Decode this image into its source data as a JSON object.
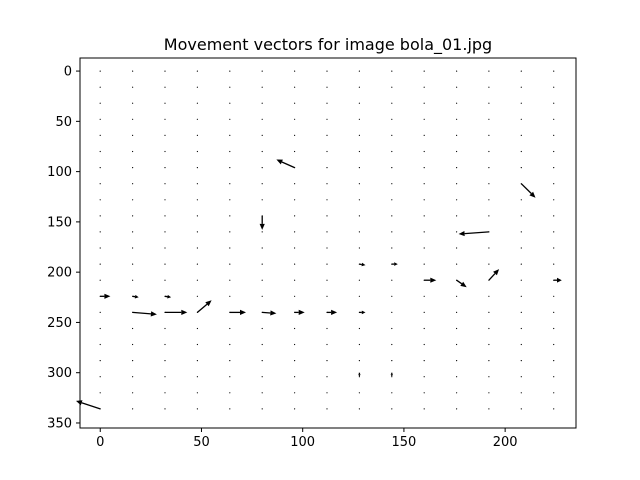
{
  "chart_data": {
    "type": "quiver",
    "title": "Movement vectors for image bola_01.jpg",
    "xlabel": "",
    "ylabel": "",
    "xlim": [
      -10,
      235
    ],
    "ylim": [
      355,
      -13
    ],
    "y_inverted": true,
    "xticks": [
      0,
      50,
      100,
      150,
      200
    ],
    "yticks": [
      0,
      50,
      100,
      150,
      200,
      250,
      300,
      350
    ],
    "grid": false,
    "legend": "none",
    "arrow_color": "#000000",
    "grid_points": {
      "x_start": 0,
      "x_step": 16,
      "x_count": 15,
      "y_start": 0,
      "y_step": 16,
      "y_count": 22
    },
    "vectors": [
      {
        "x": 96,
        "y": 96,
        "u": -9,
        "v": -8
      },
      {
        "x": 208,
        "y": 112,
        "u": 7,
        "v": 14
      },
      {
        "x": 80,
        "y": 144,
        "u": 0,
        "v": 14
      },
      {
        "x": 192,
        "y": 160,
        "u": -15,
        "v": 2
      },
      {
        "x": 128,
        "y": 192,
        "u": 3,
        "v": 1
      },
      {
        "x": 144,
        "y": 192,
        "u": 3,
        "v": 0
      },
      {
        "x": 160,
        "y": 208,
        "u": 6,
        "v": 0
      },
      {
        "x": 176,
        "y": 208,
        "u": 5,
        "v": 7
      },
      {
        "x": 192,
        "y": 208,
        "u": 5,
        "v": -11
      },
      {
        "x": 224,
        "y": 208,
        "u": 4,
        "v": 0
      },
      {
        "x": 0,
        "y": 224,
        "u": 5,
        "v": 0
      },
      {
        "x": 16,
        "y": 224,
        "u": 3,
        "v": 1
      },
      {
        "x": 32,
        "y": 224,
        "u": 3,
        "v": 1
      },
      {
        "x": 16,
        "y": 240,
        "u": 12,
        "v": 2
      },
      {
        "x": 32,
        "y": 240,
        "u": 11,
        "v": 0
      },
      {
        "x": 48,
        "y": 240,
        "u": 7,
        "v": -12
      },
      {
        "x": 64,
        "y": 240,
        "u": 8,
        "v": 0
      },
      {
        "x": 80,
        "y": 240,
        "u": 7,
        "v": 1
      },
      {
        "x": 96,
        "y": 240,
        "u": 5,
        "v": 0
      },
      {
        "x": 112,
        "y": 240,
        "u": 5,
        "v": 0
      },
      {
        "x": 128,
        "y": 240,
        "u": 3,
        "v": 0
      },
      {
        "x": 128,
        "y": 300,
        "u": 0,
        "v": 4
      },
      {
        "x": 144,
        "y": 300,
        "u": 0,
        "v": 4
      },
      {
        "x": 0,
        "y": 336,
        "u": -12,
        "v": -8
      }
    ]
  }
}
